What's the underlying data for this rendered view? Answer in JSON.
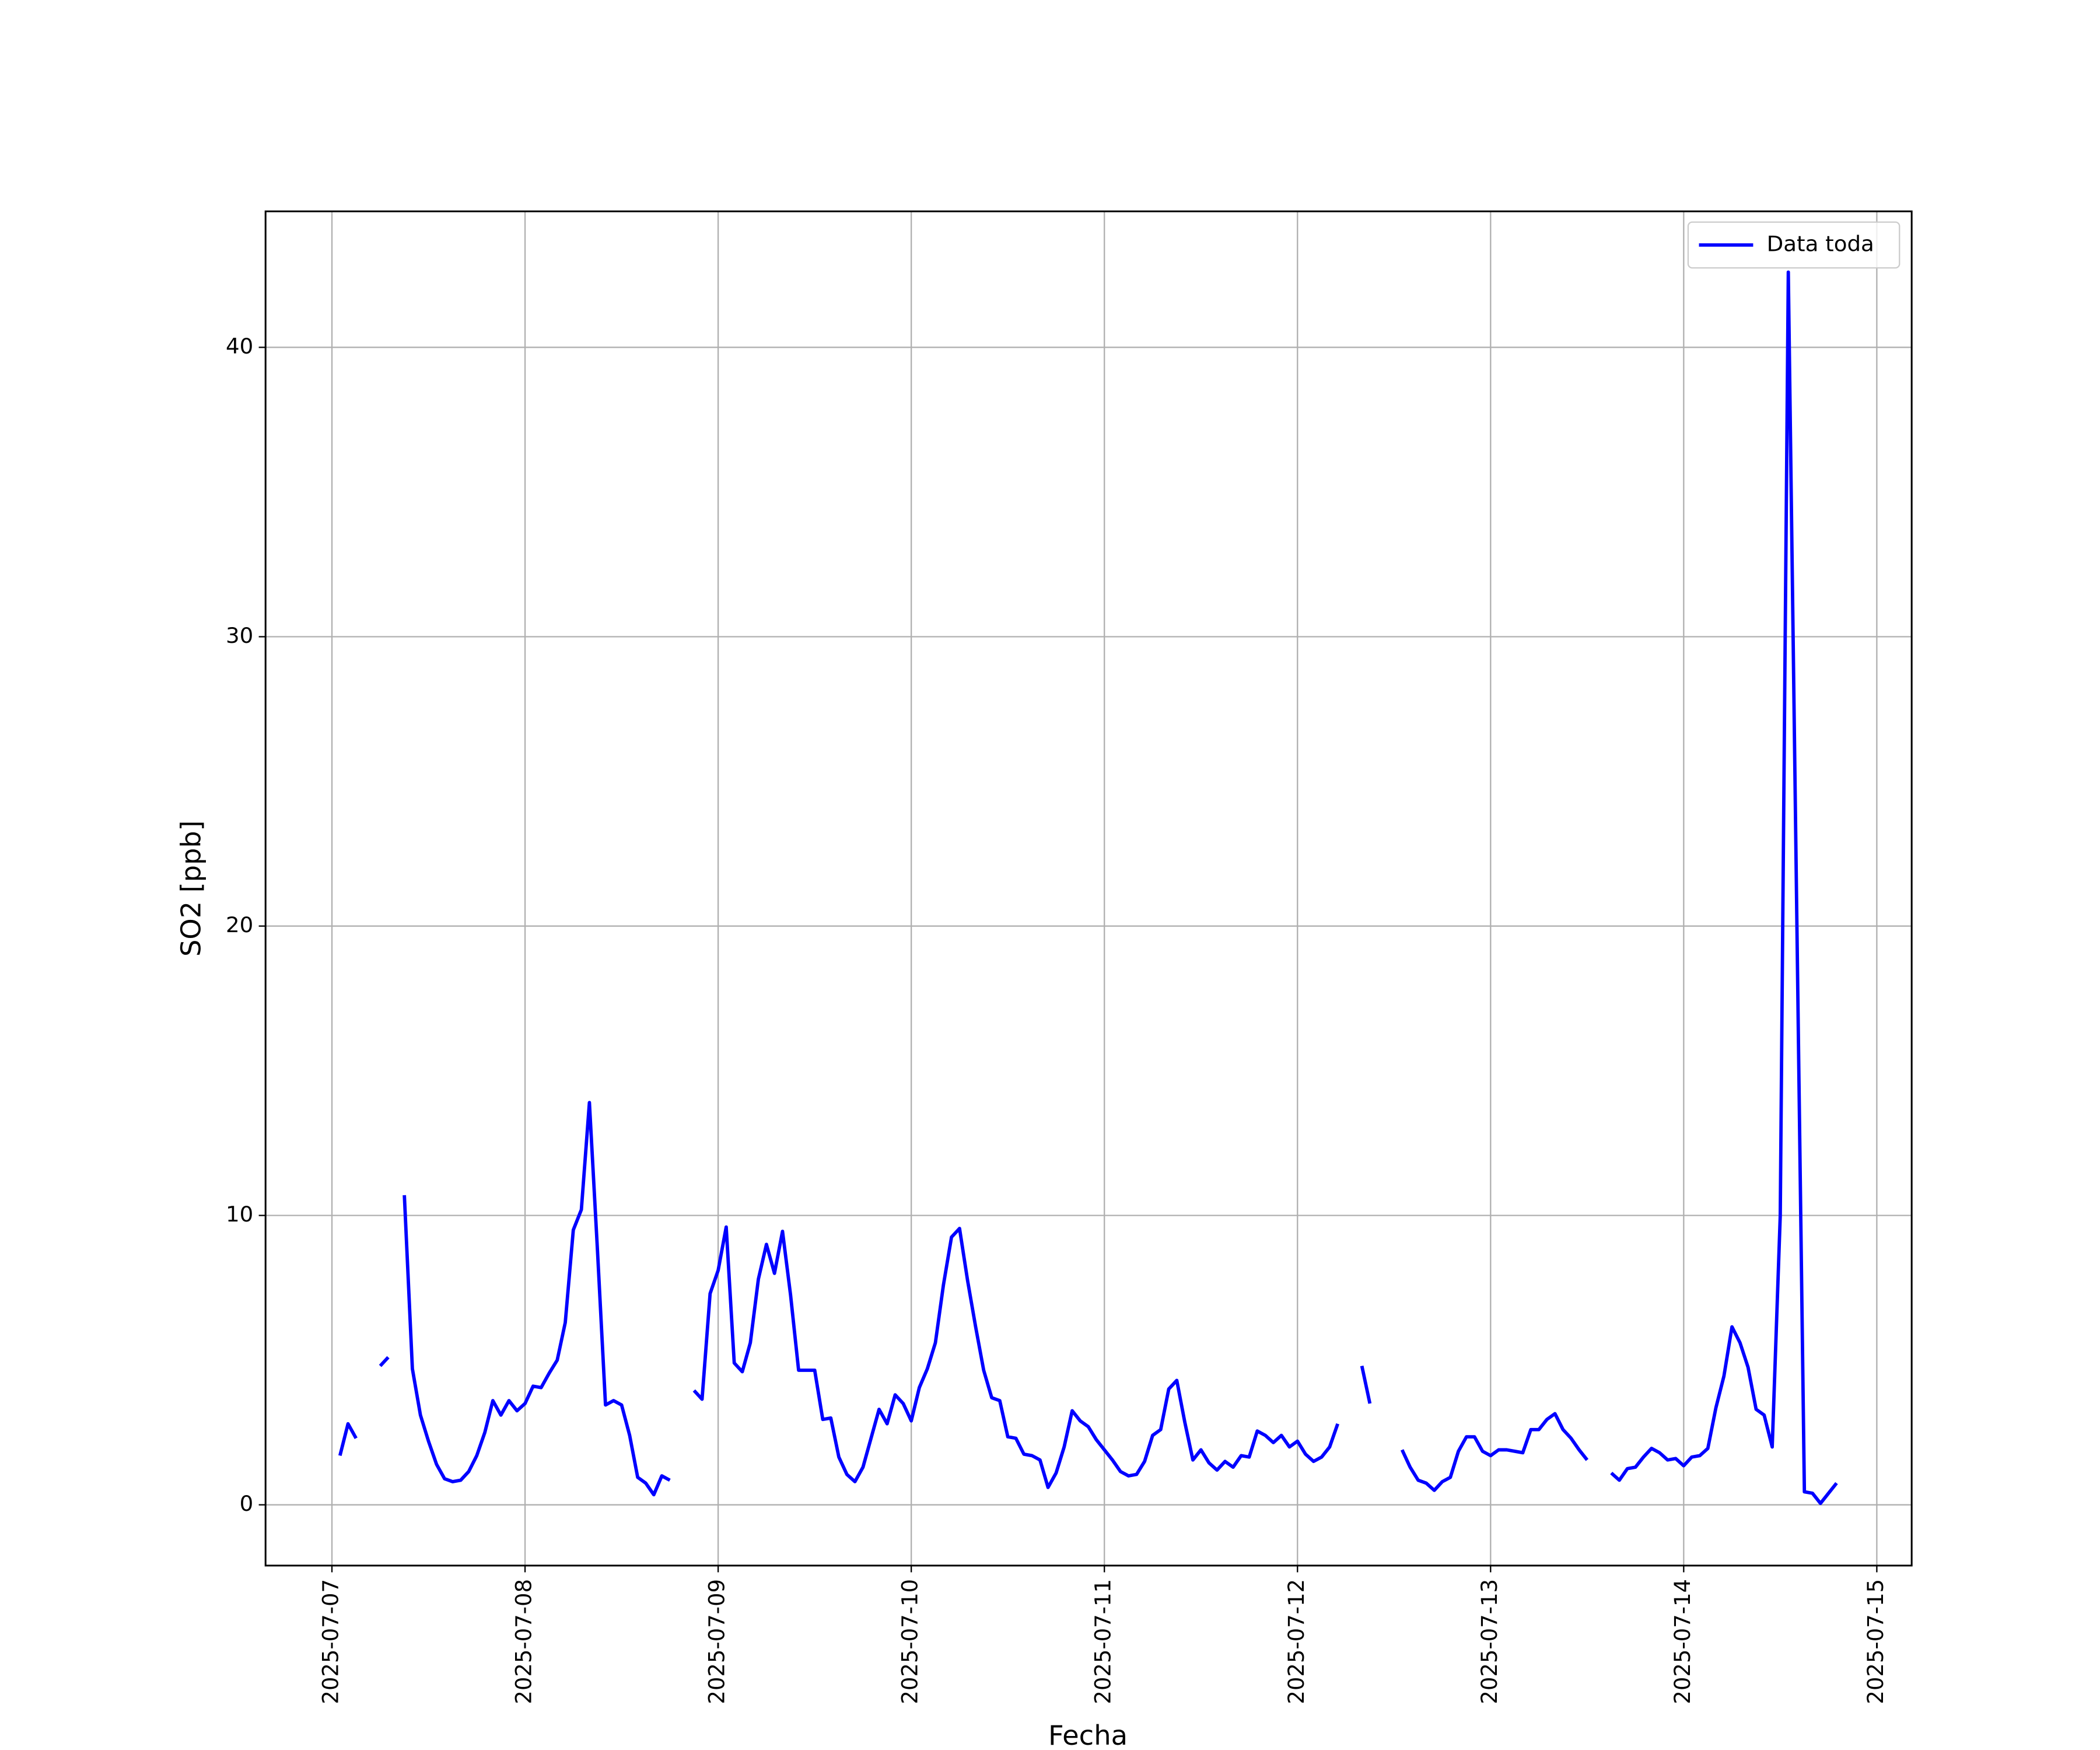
{
  "chart_data": {
    "type": "line",
    "xlabel": "Fecha",
    "ylabel": "SO2 [ppb]",
    "xlim": [
      "2025-07-06T15:45",
      "2025-07-15T04:20"
    ],
    "ylim": [
      -2.1,
      44.7
    ],
    "xticks": [
      "2025-07-07",
      "2025-07-08",
      "2025-07-09",
      "2025-07-10",
      "2025-07-11",
      "2025-07-12",
      "2025-07-13",
      "2025-07-14",
      "2025-07-15"
    ],
    "yticks": [
      0,
      10,
      20,
      30,
      40
    ],
    "grid": true,
    "legend": "upper right",
    "x": [
      "2025-07-07T01:00",
      "2025-07-07T02:00",
      "2025-07-07T03:00",
      "2025-07-07T04:00",
      "2025-07-07T05:00",
      "2025-07-07T06:00",
      "2025-07-07T07:00",
      "2025-07-07T08:00",
      "2025-07-07T09:00",
      "2025-07-07T10:00",
      "2025-07-07T11:00",
      "2025-07-07T12:00",
      "2025-07-07T13:00",
      "2025-07-07T14:00",
      "2025-07-07T15:00",
      "2025-07-07T16:00",
      "2025-07-07T17:00",
      "2025-07-07T18:00",
      "2025-07-07T19:00",
      "2025-07-07T20:00",
      "2025-07-07T21:00",
      "2025-07-07T22:00",
      "2025-07-07T23:00",
      "2025-07-08T00:00",
      "2025-07-08T01:00",
      "2025-07-08T02:00",
      "2025-07-08T03:00",
      "2025-07-08T04:00",
      "2025-07-08T05:00",
      "2025-07-08T06:00",
      "2025-07-08T07:00",
      "2025-07-08T08:00",
      "2025-07-08T09:00",
      "2025-07-08T10:00",
      "2025-07-08T11:00",
      "2025-07-08T12:00",
      "2025-07-08T13:00",
      "2025-07-08T14:00",
      "2025-07-08T15:00",
      "2025-07-08T16:00",
      "2025-07-08T17:00",
      "2025-07-08T18:00",
      "2025-07-08T19:00",
      "2025-07-08T20:00",
      "2025-07-08T21:00",
      "2025-07-08T22:00",
      "2025-07-08T23:00",
      "2025-07-09T00:00",
      "2025-07-09T01:00",
      "2025-07-09T02:00",
      "2025-07-09T03:00",
      "2025-07-09T04:00",
      "2025-07-09T05:00",
      "2025-07-09T06:00",
      "2025-07-09T07:00",
      "2025-07-09T08:00",
      "2025-07-09T09:00",
      "2025-07-09T10:00",
      "2025-07-09T11:00",
      "2025-07-09T12:00",
      "2025-07-09T13:00",
      "2025-07-09T14:00",
      "2025-07-09T15:00",
      "2025-07-09T16:00",
      "2025-07-09T17:00",
      "2025-07-09T18:00",
      "2025-07-09T19:00",
      "2025-07-09T20:00",
      "2025-07-09T21:00",
      "2025-07-09T22:00",
      "2025-07-09T23:00",
      "2025-07-10T00:00",
      "2025-07-10T01:00",
      "2025-07-10T02:00",
      "2025-07-10T03:00",
      "2025-07-10T04:00",
      "2025-07-10T05:00",
      "2025-07-10T06:00",
      "2025-07-10T07:00",
      "2025-07-10T08:00",
      "2025-07-10T09:00",
      "2025-07-10T10:00",
      "2025-07-10T11:00",
      "2025-07-10T12:00",
      "2025-07-10T13:00",
      "2025-07-10T14:00",
      "2025-07-10T15:00",
      "2025-07-10T16:00",
      "2025-07-10T17:00",
      "2025-07-10T18:00",
      "2025-07-10T19:00",
      "2025-07-10T20:00",
      "2025-07-10T21:00",
      "2025-07-10T22:00",
      "2025-07-10T23:00",
      "2025-07-11T00:00",
      "2025-07-11T01:00",
      "2025-07-11T02:00",
      "2025-07-11T03:00",
      "2025-07-11T04:00",
      "2025-07-11T05:00",
      "2025-07-11T06:00",
      "2025-07-11T07:00",
      "2025-07-11T08:00",
      "2025-07-11T09:00",
      "2025-07-11T10:00",
      "2025-07-11T11:00",
      "2025-07-11T12:00",
      "2025-07-11T13:00",
      "2025-07-11T14:00",
      "2025-07-11T15:00",
      "2025-07-11T16:00",
      "2025-07-11T17:00",
      "2025-07-11T18:00",
      "2025-07-11T19:00",
      "2025-07-11T20:00",
      "2025-07-11T21:00",
      "2025-07-11T22:00",
      "2025-07-11T23:00",
      "2025-07-12T00:00",
      "2025-07-12T01:00",
      "2025-07-12T02:00",
      "2025-07-12T03:00",
      "2025-07-12T04:00",
      "2025-07-12T05:00",
      "2025-07-12T06:00",
      "2025-07-12T07:00",
      "2025-07-12T08:00",
      "2025-07-12T09:00",
      "2025-07-12T10:00",
      "2025-07-12T11:00",
      "2025-07-12T12:00",
      "2025-07-12T13:00",
      "2025-07-12T14:00",
      "2025-07-12T15:00",
      "2025-07-12T16:00",
      "2025-07-12T17:00",
      "2025-07-12T18:00",
      "2025-07-12T19:00",
      "2025-07-12T20:00",
      "2025-07-12T21:00",
      "2025-07-12T22:00",
      "2025-07-12T23:00",
      "2025-07-13T00:00",
      "2025-07-13T01:00",
      "2025-07-13T02:00",
      "2025-07-13T03:00",
      "2025-07-13T04:00",
      "2025-07-13T05:00",
      "2025-07-13T06:00",
      "2025-07-13T07:00",
      "2025-07-13T08:00",
      "2025-07-13T09:00",
      "2025-07-13T10:00",
      "2025-07-13T11:00",
      "2025-07-13T12:00",
      "2025-07-13T13:00",
      "2025-07-13T14:00",
      "2025-07-13T15:00",
      "2025-07-13T16:00",
      "2025-07-13T17:00",
      "2025-07-13T18:00",
      "2025-07-13T19:00",
      "2025-07-13T20:00",
      "2025-07-13T21:00",
      "2025-07-13T22:00",
      "2025-07-13T23:00",
      "2025-07-14T00:00",
      "2025-07-14T01:00",
      "2025-07-14T02:00",
      "2025-07-14T03:00",
      "2025-07-14T04:00",
      "2025-07-14T05:00",
      "2025-07-14T06:00",
      "2025-07-14T07:00",
      "2025-07-14T08:00",
      "2025-07-14T09:00",
      "2025-07-14T10:00",
      "2025-07-14T11:00",
      "2025-07-14T12:00",
      "2025-07-14T13:00",
      "2025-07-14T14:00",
      "2025-07-14T15:00",
      "2025-07-14T16:00",
      "2025-07-14T17:00",
      "2025-07-14T18:00",
      "2025-07-14T19:00"
    ],
    "series": [
      {
        "name": "Data toda",
        "color": "#0000ff",
        "values": [
          1.7,
          2.8,
          2.3,
          null,
          null,
          4.8,
          5.1,
          null,
          10.7,
          4.7,
          3.1,
          2.2,
          1.4,
          0.9,
          0.8,
          0.85,
          1.15,
          1.7,
          2.5,
          3.6,
          3.1,
          3.6,
          3.25,
          3.5,
          4.1,
          4.05,
          4.55,
          5.0,
          6.3,
          9.5,
          10.2,
          13.9,
          8.8,
          3.45,
          3.6,
          3.45,
          2.4,
          0.95,
          0.75,
          0.35,
          1.0,
          0.85,
          null,
          null,
          3.95,
          3.65,
          7.3,
          8.1,
          9.6,
          4.9,
          4.6,
          5.6,
          7.8,
          9.0,
          8.0,
          9.45,
          7.25,
          4.65,
          4.65,
          4.65,
          2.95,
          3.0,
          1.65,
          1.05,
          0.8,
          1.3,
          2.3,
          3.3,
          2.8,
          3.8,
          3.5,
          2.9,
          4.05,
          4.7,
          5.6,
          7.6,
          9.25,
          9.55,
          7.75,
          6.15,
          4.65,
          3.7,
          3.6,
          2.35,
          2.3,
          1.75,
          1.7,
          1.55,
          0.6,
          1.1,
          2.0,
          3.25,
          2.9,
          2.7,
          2.25,
          1.9,
          1.55,
          1.15,
          1.0,
          1.05,
          1.5,
          2.4,
          2.6,
          4.0,
          4.3,
          2.85,
          1.55,
          1.9,
          1.45,
          1.2,
          1.5,
          1.3,
          1.7,
          1.65,
          2.55,
          2.4,
          2.15,
          2.4,
          2.0,
          2.2,
          1.75,
          1.5,
          1.65,
          2.0,
          2.8,
          null,
          null,
          4.8,
          3.5,
          null,
          null,
          null,
          1.9,
          1.3,
          0.85,
          0.75,
          0.5,
          0.8,
          0.95,
          1.85,
          2.35,
          2.35,
          1.85,
          1.7,
          1.9,
          1.9,
          1.85,
          1.8,
          2.6,
          2.6,
          2.95,
          3.15,
          2.6,
          2.3,
          1.9,
          1.55,
          null,
          null,
          1.1,
          0.85,
          1.25,
          1.3,
          1.65,
          1.95,
          1.8,
          1.55,
          1.6,
          1.35,
          1.65,
          1.7,
          1.95,
          3.35,
          4.45,
          6.15,
          5.6,
          4.75,
          3.3,
          3.1,
          2.0,
          10.0,
          42.6,
          21.5,
          0.45,
          0.4,
          0.05,
          0.4,
          0.75
        ]
      }
    ]
  }
}
